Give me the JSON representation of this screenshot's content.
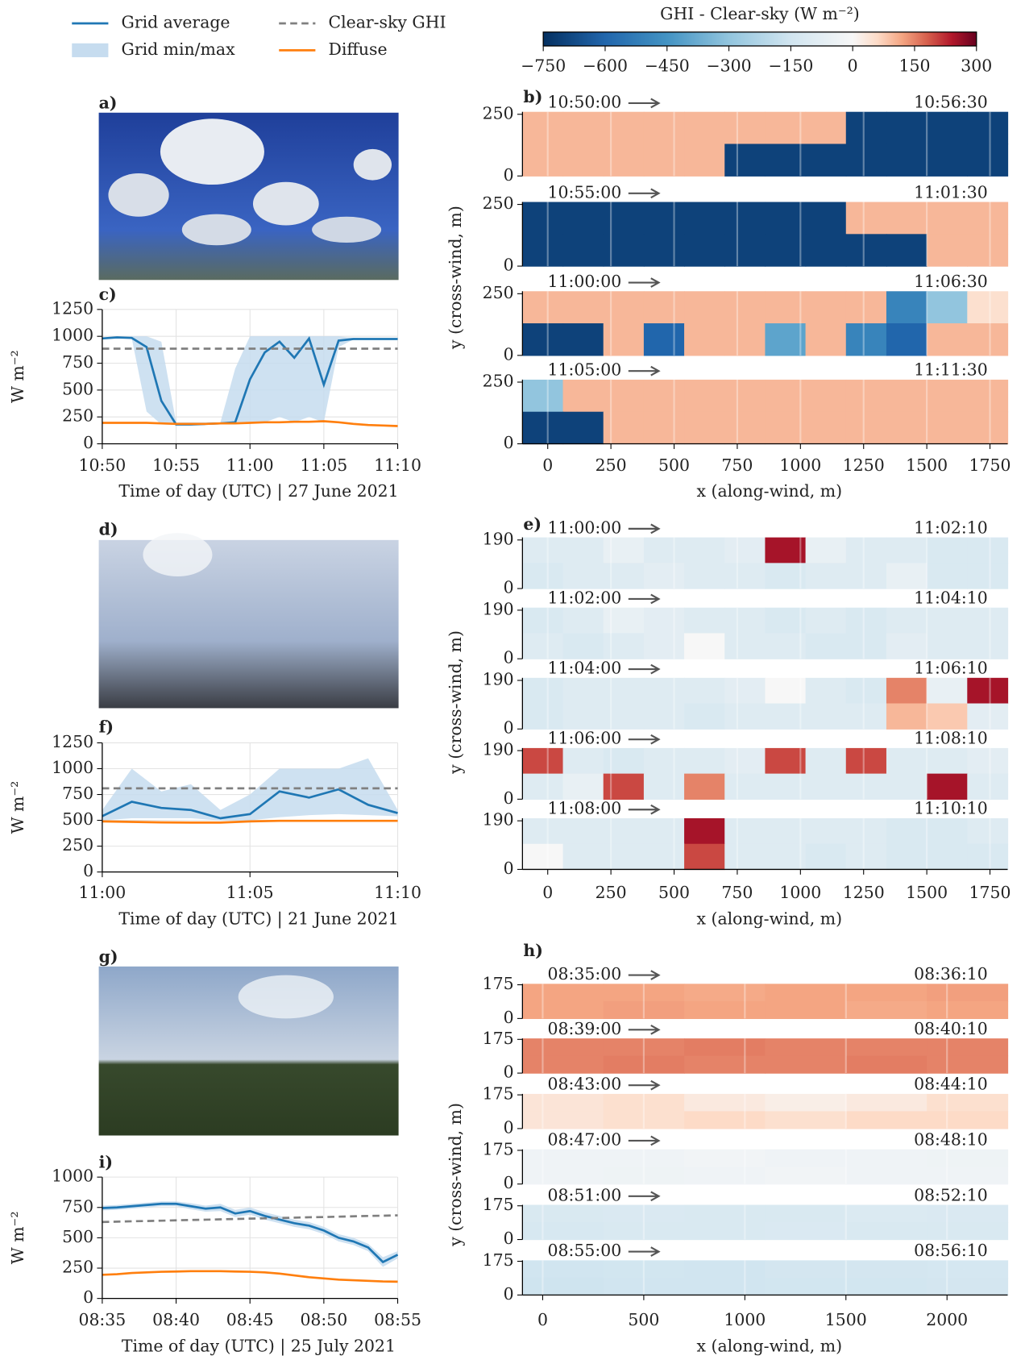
{
  "legend_note": null,
  "colorbar": {
    "label": "GHI - Clear-sky (W m⁻²)",
    "lim": [
      -750,
      300
    ],
    "ticks": [
      {
        "value": -750,
        "label": "−750"
      },
      {
        "value": -600,
        "label": "−600"
      },
      {
        "value": -450,
        "label": "−450"
      },
      {
        "value": -300,
        "label": "−300"
      },
      {
        "value": -150,
        "label": "−150"
      },
      0,
      150,
      300
    ],
    "colors": [
      "#053061",
      "#2166ac",
      "#4393c3",
      "#92c5de",
      "#d1e5f0",
      "#f7f7f7",
      "#fddbc7",
      "#f4a582",
      "#d6604d",
      "#b2182b",
      "#67001f"
    ],
    "center_color": 5
  },
  "photos": [
    {
      "panel": "a)"
    },
    {
      "panel": "d)"
    },
    {
      "panel": "g)"
    }
  ],
  "chart_data": [
    {
      "type": "line",
      "panel": "c)",
      "xlabel": "Time of day (UTC) | 27 June 2021",
      "ylabel": "W m⁻²",
      "grid": true,
      "x": [
        "10:50",
        "10:51",
        "10:52",
        "10:53",
        "10:54",
        "10:55",
        "10:56",
        "10:57",
        "10:58",
        "10:59",
        "11:00",
        "11:01",
        "11:02",
        "11:03",
        "11:04",
        "11:05",
        "11:06",
        "11:07",
        "11:08",
        "11:09",
        "11:10"
      ],
      "xlim": [
        "10:50",
        "11:10"
      ],
      "xticks": [
        "10:50",
        "10:55",
        "11:00",
        "11:05",
        "11:10"
      ],
      "ylim": [
        0,
        1250
      ],
      "yticks": [
        0,
        250,
        500,
        750,
        1000,
        1250
      ],
      "series": [
        {
          "name": "Grid average",
          "color": "#1f77b4",
          "values": [
            980,
            990,
            985,
            900,
            400,
            180,
            180,
            185,
            190,
            200,
            600,
            850,
            950,
            800,
            980,
            550,
            960,
            975,
            975,
            975,
            975
          ]
        },
        {
          "name": "Grid min/max",
          "color": "#c6dcef",
          "min": [
            975,
            985,
            980,
            300,
            180,
            175,
            175,
            180,
            185,
            190,
            200,
            200,
            250,
            200,
            250,
            200,
            900,
            970,
            970,
            970,
            970
          ],
          "max": [
            985,
            995,
            1000,
            1000,
            950,
            200,
            200,
            200,
            200,
            700,
            1000,
            1000,
            1000,
            1000,
            1000,
            1000,
            1000,
            985,
            980,
            980,
            980
          ]
        },
        {
          "name": "Clear-sky GHI",
          "color": "#808080",
          "dashed": true,
          "values": [
            885,
            885,
            885,
            885,
            885,
            885,
            885,
            885,
            885,
            885,
            885,
            885,
            885,
            885,
            885,
            885,
            885,
            885,
            885,
            885,
            885
          ]
        },
        {
          "name": "Diffuse",
          "color": "#ff7f0e",
          "values": [
            195,
            195,
            195,
            195,
            190,
            185,
            185,
            185,
            190,
            190,
            195,
            200,
            200,
            205,
            205,
            210,
            200,
            185,
            175,
            170,
            165
          ]
        }
      ]
    },
    {
      "type": "heatmap",
      "panel": "b)",
      "xlabel": "x (along-wind, m)",
      "ylabel": "y (cross-wind, m)",
      "grid": true,
      "xlim": [
        -100,
        1820
      ],
      "xticks": [
        0,
        250,
        500,
        750,
        1000,
        1250,
        1500,
        1750
      ],
      "ylim": [
        0,
        260
      ],
      "yticks": [
        0,
        250
      ],
      "strips": [
        {
          "start": "10:50:00",
          "end": "10:56:30",
          "values": [
            [
              100,
              100,
              100,
              100,
              100,
              100,
              100,
              100,
              -700,
              -700,
              -700,
              -700
            ],
            [
              100,
              100,
              100,
              100,
              100,
              -700,
              -700,
              -700,
              -700,
              -700,
              -700,
              -700
            ]
          ]
        },
        {
          "start": "10:55:00",
          "end": "11:01:30",
          "values": [
            [
              -700,
              -700,
              -700,
              -700,
              -700,
              -700,
              -700,
              -700,
              100,
              100,
              100,
              100
            ],
            [
              -700,
              -700,
              -700,
              -700,
              -700,
              -700,
              -700,
              -700,
              -700,
              -700,
              100,
              100
            ]
          ]
        },
        {
          "start": "11:00:00",
          "end": "11:06:30",
          "values": [
            [
              100,
              100,
              100,
              100,
              100,
              100,
              100,
              100,
              100,
              -500,
              -300,
              50
            ],
            [
              -700,
              -700,
              100,
              -600,
              100,
              100,
              -400,
              100,
              -500,
              -600,
              100,
              100
            ]
          ]
        },
        {
          "start": "11:05:00",
          "end": "11:11:30",
          "values": [
            [
              -300,
              100,
              100,
              100,
              100,
              100,
              100,
              100,
              100,
              100,
              100,
              100
            ],
            [
              -700,
              -700,
              100,
              100,
              100,
              100,
              100,
              100,
              100,
              100,
              100,
              100
            ]
          ]
        }
      ]
    },
    {
      "type": "line",
      "panel": "f)",
      "xlabel": "Time of day (UTC) | 21 June 2021",
      "ylabel": "W m⁻²",
      "grid": true,
      "x": [
        "11:00",
        "11:01",
        "11:02",
        "11:03",
        "11:04",
        "11:05",
        "11:06",
        "11:07",
        "11:08",
        "11:09",
        "11:10"
      ],
      "xlim": [
        "11:00",
        "11:10"
      ],
      "xticks": [
        "11:00",
        "11:05",
        "11:10"
      ],
      "ylim": [
        0,
        1250
      ],
      "yticks": [
        0,
        250,
        500,
        750,
        1000,
        1250
      ],
      "series": [
        {
          "color": "#1f77b4",
          "values": [
            540,
            680,
            620,
            600,
            520,
            560,
            780,
            720,
            800,
            650,
            570
          ]
        },
        {
          "color": "#c6dcef",
          "min": [
            500,
            520,
            520,
            520,
            500,
            500,
            530,
            550,
            560,
            550,
            540
          ],
          "max": [
            600,
            1000,
            780,
            850,
            600,
            750,
            1000,
            1000,
            1000,
            1100,
            600
          ]
        },
        {
          "color": "#808080",
          "dashed": true,
          "values": [
            810,
            810,
            810,
            810,
            810,
            810,
            810,
            810,
            810,
            810,
            810
          ]
        },
        {
          "color": "#ff7f0e",
          "values": [
            490,
            485,
            480,
            478,
            478,
            490,
            495,
            495,
            495,
            495,
            495
          ]
        }
      ]
    },
    {
      "type": "heatmap",
      "panel": "e)",
      "xlabel": "x (along-wind, m)",
      "ylabel": "y (cross-wind, m)",
      "grid": true,
      "xlim": [
        -100,
        1820
      ],
      "xticks": [
        0,
        250,
        500,
        750,
        1000,
        1250,
        1500,
        1750
      ],
      "ylim": [
        0,
        200
      ],
      "yticks": [
        0,
        190
      ],
      "strips": [
        {
          "start": "11:00:00",
          "end": "11:02:10",
          "values": [
            [
              -100,
              -100,
              -60,
              -100,
              -100,
              -80,
              250,
              -60,
              -100,
              -100,
              -120,
              -120
            ],
            [
              -120,
              -100,
              -100,
              -80,
              -100,
              -100,
              -120,
              -100,
              -100,
              -60,
              -120,
              -120
            ]
          ]
        },
        {
          "start": "11:02:00",
          "end": "11:04:10",
          "values": [
            [
              -120,
              -100,
              -60,
              -80,
              -100,
              -100,
              -120,
              -100,
              -120,
              -100,
              -100,
              -100
            ],
            [
              -100,
              -120,
              -100,
              -80,
              0,
              -100,
              -100,
              -120,
              -120,
              -80,
              -100,
              -100
            ]
          ]
        },
        {
          "start": "11:04:00",
          "end": "11:06:10",
          "values": [
            [
              -120,
              -100,
              -100,
              -100,
              -100,
              -80,
              0,
              -100,
              -120,
              150,
              -60,
              250
            ],
            [
              -120,
              -100,
              -100,
              -100,
              -120,
              -100,
              -100,
              -100,
              -100,
              100,
              80,
              -80
            ]
          ]
        },
        {
          "start": "11:06:00",
          "end": "11:08:10",
          "values": [
            [
              200,
              -100,
              -120,
              -100,
              -100,
              -80,
              200,
              -100,
              200,
              -100,
              -100,
              -80
            ],
            [
              -100,
              -60,
              200,
              -100,
              150,
              -100,
              -100,
              -100,
              -100,
              -100,
              250,
              -100
            ]
          ]
        },
        {
          "start": "11:08:00",
          "end": "11:10:10",
          "values": [
            [
              -100,
              -100,
              -100,
              -100,
              250,
              -100,
              -100,
              -100,
              -100,
              -120,
              -120,
              -100
            ],
            [
              0,
              -100,
              -100,
              -100,
              200,
              -100,
              -100,
              -120,
              -100,
              -120,
              -120,
              -120
            ]
          ]
        }
      ]
    },
    {
      "type": "line",
      "panel": "i)",
      "xlabel": "Time of day (UTC) | 25 July 2021",
      "ylabel": "W m⁻²",
      "grid": true,
      "x": [
        "08:35",
        "08:36",
        "08:37",
        "08:38",
        "08:39",
        "08:40",
        "08:41",
        "08:42",
        "08:43",
        "08:44",
        "08:45",
        "08:46",
        "08:47",
        "08:48",
        "08:49",
        "08:50",
        "08:51",
        "08:52",
        "08:53",
        "08:54",
        "08:55"
      ],
      "xlim": [
        "08:35",
        "08:55"
      ],
      "xticks": [
        "08:35",
        "08:40",
        "08:45",
        "08:50",
        "08:55"
      ],
      "ylim": [
        0,
        1000
      ],
      "yticks": [
        0,
        250,
        500,
        750,
        1000
      ],
      "series": [
        {
          "color": "#1f77b4",
          "values": [
            745,
            750,
            760,
            770,
            780,
            780,
            760,
            740,
            750,
            700,
            720,
            680,
            650,
            620,
            600,
            560,
            500,
            470,
            420,
            300,
            360
          ]
        },
        {
          "color": "#c6dcef",
          "min": [
            725,
            730,
            740,
            750,
            760,
            760,
            735,
            715,
            720,
            670,
            690,
            650,
            620,
            590,
            570,
            530,
            470,
            440,
            390,
            260,
            330
          ],
          "max": [
            765,
            770,
            780,
            790,
            800,
            800,
            785,
            765,
            780,
            730,
            750,
            710,
            680,
            650,
            630,
            590,
            530,
            500,
            450,
            340,
            390
          ]
        },
        {
          "color": "#808080",
          "dashed": true,
          "values": [
            630,
            633,
            636,
            638,
            641,
            644,
            647,
            649,
            652,
            655,
            658,
            660,
            663,
            666,
            669,
            671,
            674,
            677,
            680,
            682,
            685
          ]
        },
        {
          "color": "#ff7f0e",
          "values": [
            195,
            200,
            210,
            215,
            220,
            222,
            225,
            225,
            225,
            222,
            220,
            215,
            205,
            190,
            175,
            165,
            155,
            150,
            145,
            140,
            138
          ]
        }
      ]
    },
    {
      "type": "heatmap",
      "panel": "h)",
      "xlabel": "x (along-wind, m)",
      "ylabel": "y (cross-wind, m)",
      "grid": true,
      "xlim": [
        -100,
        2300
      ],
      "xticks": [
        0,
        500,
        1000,
        1500,
        2000
      ],
      "ylim": [
        0,
        180
      ],
      "yticks": [
        0,
        175
      ],
      "strips": [
        {
          "start": "08:35:00",
          "end": "08:36:10",
          "values": [
            [
              120,
              120,
              115,
              120,
              120,
              125
            ],
            [
              120,
              125,
              120,
              120,
              115,
              120
            ]
          ]
        },
        {
          "start": "08:39:00",
          "end": "08:40:10",
          "values": [
            [
              150,
              150,
              155,
              150,
              150,
              150
            ],
            [
              150,
              155,
              150,
              150,
              155,
              150
            ]
          ]
        },
        {
          "start": "08:43:00",
          "end": "08:44:10",
          "values": [
            [
              40,
              50,
              30,
              20,
              30,
              50
            ],
            [
              40,
              50,
              60,
              50,
              60,
              60
            ]
          ]
        },
        {
          "start": "08:47:00",
          "end": "08:48:10",
          "values": [
            [
              -30,
              -30,
              -25,
              -30,
              -30,
              -35
            ],
            [
              -30,
              -35,
              -30,
              -25,
              -30,
              -30
            ]
          ]
        },
        {
          "start": "08:51:00",
          "end": "08:52:10",
          "values": [
            [
              -120,
              -115,
              -120,
              -120,
              -110,
              -115
            ],
            [
              -125,
              -120,
              -120,
              -115,
              -120,
              -120
            ]
          ]
        },
        {
          "start": "08:55:00",
          "end": "08:56:10",
          "values": [
            [
              -150,
              -145,
              -150,
              -140,
              -140,
              -135
            ],
            [
              -155,
              -150,
              -150,
              -145,
              -145,
              -140
            ]
          ]
        }
      ]
    }
  ]
}
